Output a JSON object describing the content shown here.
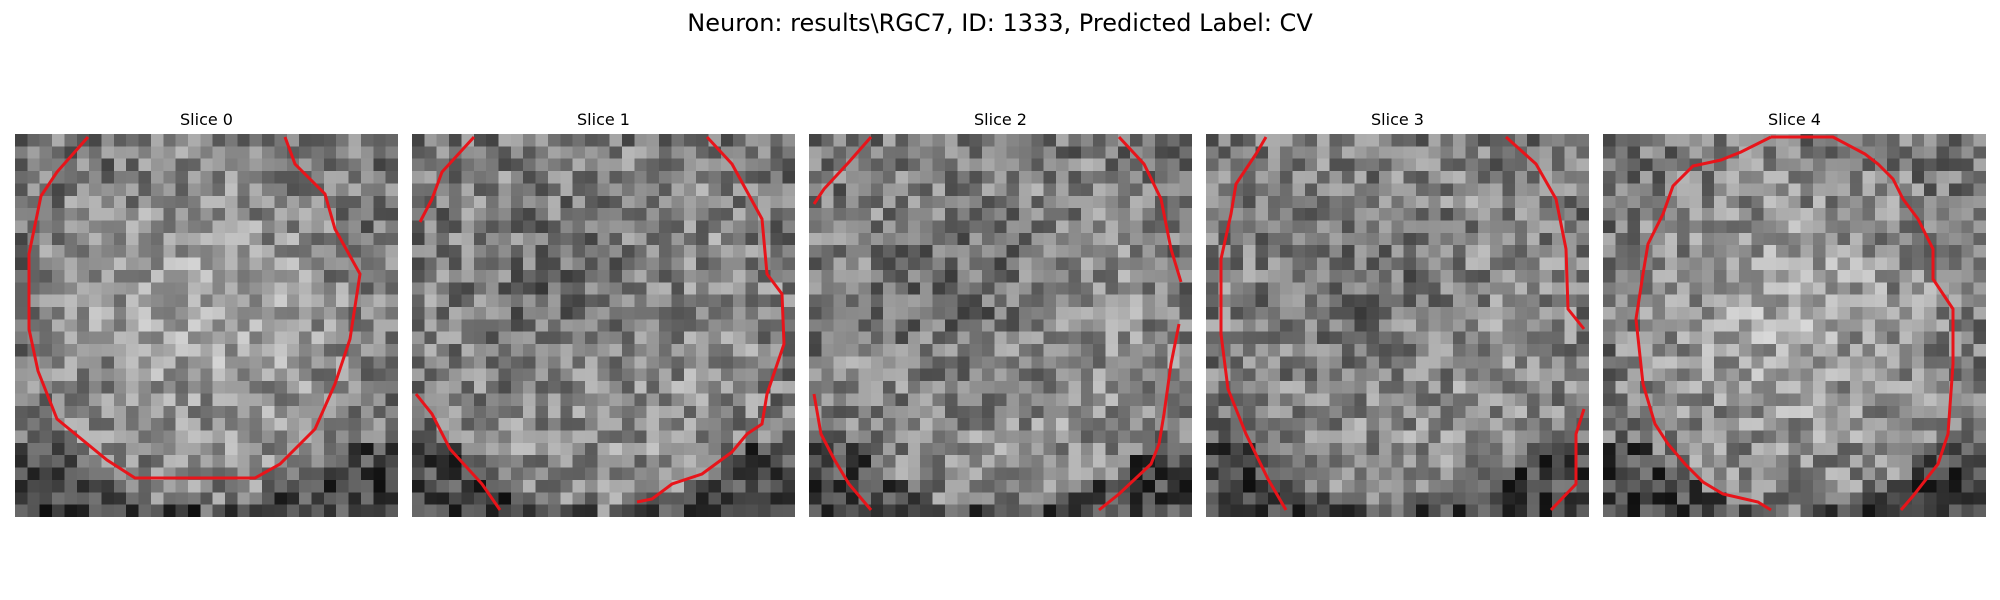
{
  "figure": {
    "title": "Neuron: results\\RGC7, ID: 1333, Predicted Label: CV"
  },
  "panels": [
    {
      "title": "Slice 0"
    },
    {
      "title": "Slice 1"
    },
    {
      "title": "Slice 2"
    },
    {
      "title": "Slice 3"
    },
    {
      "title": "Slice 4"
    }
  ],
  "colors": {
    "contour": "#e8141a",
    "colormap": "grayscale"
  }
}
